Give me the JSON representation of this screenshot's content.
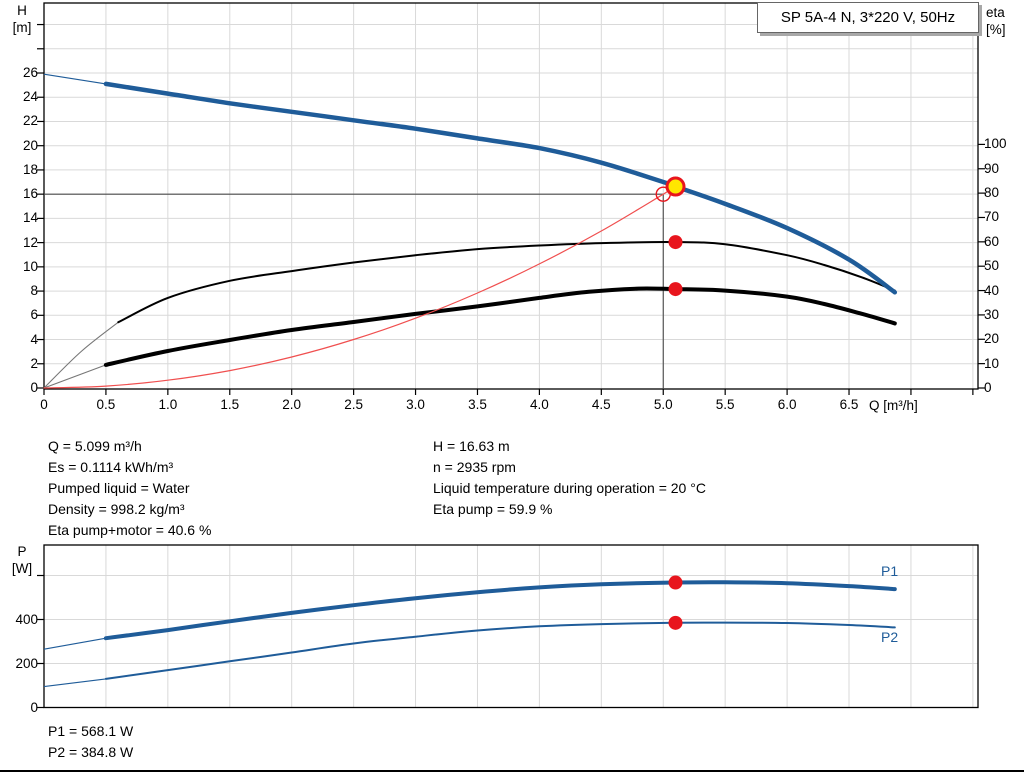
{
  "title_box": {
    "text": "SP 5A-4 N, 3*220 V, 50Hz"
  },
  "top_chart": {
    "y_left_label_line1": "H",
    "y_left_label_line2": "[m]",
    "y_right_label_line1": "eta",
    "y_right_label_line2": "[%]",
    "x_label": "Q [m³/h]",
    "y_left_tick_labels": [
      "26",
      "24",
      "22",
      "20",
      "18",
      "16",
      "14",
      "12",
      "10",
      "8",
      "6",
      "4",
      "2",
      "0"
    ],
    "y_right_tick_labels": [
      "100",
      "90",
      "80",
      "70",
      "60",
      "50",
      "40",
      "30",
      "20",
      "10",
      "0"
    ],
    "x_tick_labels": [
      "0",
      "0.5",
      "1.0",
      "1.5",
      "2.0",
      "2.5",
      "3.0",
      "3.5",
      "4.0",
      "4.5",
      "5.0",
      "5.5",
      "6.0",
      "6.5"
    ]
  },
  "info": {
    "left": [
      "Q = 5.099 m³/h",
      "Es = 0.1114 kWh/m³",
      "Pumped liquid = Water",
      "Density = 998.2 kg/m³",
      "Eta pump+motor = 40.6 %"
    ],
    "right": [
      "H = 16.63 m",
      "n = 2935 rpm",
      "Liquid temperature during operation = 20 °C",
      "Eta pump = 59.9 %"
    ]
  },
  "bottom_chart": {
    "y_label_line1": "P",
    "y_label_line2": "[W]",
    "y_tick_labels": [
      "400",
      "200",
      "0"
    ],
    "p1_label": "P1",
    "p2_label": "P2"
  },
  "footer": {
    "p1": "P1 = 568.1 W",
    "p2": "P2 = 384.8 W"
  },
  "colors": {
    "curve_blue": "#1F5C99",
    "eta_black": "#000000",
    "marker_red": "#E8151D",
    "marker_yellow": "#FFE600",
    "system_curve_red": "#F04F4F",
    "grid": "#D9D9D9",
    "crosshair": "#4A4A4A",
    "axis": "#000000"
  },
  "chart_data": [
    {
      "type": "line",
      "title": "SP 5A-4 N, 3*220 V, 50Hz",
      "xlabel": "Q [m³/h]",
      "ylabel_left": "H [m]",
      "ylabel_right": "eta [%]",
      "xlim": [
        0,
        7.54
      ],
      "ylim_left": [
        0,
        31.8
      ],
      "ylim_right": [
        0,
        130
      ],
      "grid": true,
      "series": [
        {
          "name": "eta-pump",
          "axis": "right",
          "color": "#000000",
          "width": 2,
          "thin_until": 0.6,
          "lead_color": "#777777",
          "points": [
            [
              0,
              0
            ],
            [
              0.3,
              15
            ],
            [
              0.6,
              27
            ],
            [
              1,
              37
            ],
            [
              1.5,
              44
            ],
            [
              2,
              48
            ],
            [
              2.5,
              51.5
            ],
            [
              3,
              54.5
            ],
            [
              3.5,
              57
            ],
            [
              4,
              58.5
            ],
            [
              4.5,
              59.5
            ],
            [
              5.099,
              59.9
            ],
            [
              5.5,
              59
            ],
            [
              6,
              54.5
            ],
            [
              6.3,
              50.5
            ],
            [
              6.6,
              45.5
            ],
            [
              6.87,
              40
            ]
          ]
        },
        {
          "name": "eta-pump-motor",
          "axis": "right",
          "color": "#000000",
          "width": 4,
          "thin_until": 0.5,
          "lead_color": "#777777",
          "points": [
            [
              0,
              0
            ],
            [
              0.5,
              9.5
            ],
            [
              1,
              15.2
            ],
            [
              1.5,
              19.7
            ],
            [
              2,
              23.8
            ],
            [
              2.5,
              27.1
            ],
            [
              3,
              30.4
            ],
            [
              3.5,
              33.5
            ],
            [
              4,
              37
            ],
            [
              4.4,
              39.5
            ],
            [
              4.8,
              40.8
            ],
            [
              5.099,
              40.6
            ],
            [
              5.5,
              40
            ],
            [
              6,
              37.5
            ],
            [
              6.3,
              34.5
            ],
            [
              6.6,
              30.5
            ],
            [
              6.87,
              26.5
            ]
          ]
        },
        {
          "name": "system-curve",
          "axis": "left",
          "color": "#F04F4F",
          "width": 1.2,
          "thin_until": 0,
          "points": [
            [
              0,
              0
            ],
            [
              0.5,
              0.16
            ],
            [
              1,
              0.64
            ],
            [
              1.5,
              1.44
            ],
            [
              2,
              2.56
            ],
            [
              2.5,
              4.0
            ],
            [
              3,
              5.76
            ],
            [
              3.5,
              7.84
            ],
            [
              4,
              10.24
            ],
            [
              4.5,
              12.96
            ],
            [
              5,
              16.0
            ],
            [
              5.099,
              16.63
            ]
          ]
        },
        {
          "name": "head",
          "axis": "left",
          "color": "#1F5C99",
          "width": 4.5,
          "thin_until": 0.5,
          "points": [
            [
              0,
              25.9
            ],
            [
              0.5,
              25.1
            ],
            [
              1,
              24.3
            ],
            [
              1.5,
              23.5
            ],
            [
              2,
              22.8
            ],
            [
              2.5,
              22.1
            ],
            [
              3,
              21.4
            ],
            [
              3.5,
              20.6
            ],
            [
              4,
              19.8
            ],
            [
              4.5,
              18.6
            ],
            [
              5,
              17.0
            ],
            [
              5.099,
              16.63
            ],
            [
              5.5,
              15.2
            ],
            [
              6,
              13.2
            ],
            [
              6.5,
              10.6
            ],
            [
              6.87,
              7.9
            ]
          ]
        }
      ],
      "markers": [
        {
          "name": "requested-duty-point",
          "axis": "left",
          "x": 5.0,
          "y": 16.0,
          "style": "open-red"
        },
        {
          "name": "duty-point",
          "axis": "left",
          "x": 5.099,
          "y": 16.63,
          "style": "yellow-target"
        },
        {
          "name": "eta-pump-point",
          "axis": "right",
          "x": 5.099,
          "y": 59.9,
          "style": "red-dot"
        },
        {
          "name": "eta-pump-motor-point",
          "axis": "right",
          "x": 5.099,
          "y": 40.6,
          "style": "red-dot"
        }
      ],
      "crosshair": {
        "x": 5.0,
        "y_left": 16.0
      }
    },
    {
      "type": "line",
      "xlabel": "Q [m³/h]",
      "ylabel_left": "P [W]",
      "xlim": [
        0,
        7.54
      ],
      "ylim_left": [
        0,
        739
      ],
      "grid": true,
      "series": [
        {
          "name": "P1",
          "axis": "left",
          "color": "#1F5C99",
          "width": 4,
          "thin_until": 0.5,
          "points": [
            [
              0,
              265
            ],
            [
              0.5,
              315
            ],
            [
              1,
              352
            ],
            [
              1.5,
              392
            ],
            [
              2,
              430
            ],
            [
              2.5,
              465
            ],
            [
              3,
              497
            ],
            [
              3.5,
              524
            ],
            [
              4,
              546
            ],
            [
              4.5,
              560
            ],
            [
              5.099,
              568.1
            ],
            [
              5.5,
              569
            ],
            [
              6,
              565
            ],
            [
              6.5,
              552
            ],
            [
              6.87,
              538
            ]
          ]
        },
        {
          "name": "P2",
          "axis": "left",
          "color": "#1F5C99",
          "width": 2,
          "thin_until": 0.5,
          "points": [
            [
              0,
              95
            ],
            [
              0.5,
              130
            ],
            [
              1,
              170
            ],
            [
              1.5,
              210
            ],
            [
              2,
              250
            ],
            [
              2.5,
              291
            ],
            [
              3,
              322
            ],
            [
              3.5,
              350
            ],
            [
              4,
              369
            ],
            [
              4.5,
              379
            ],
            [
              5.099,
              384.8
            ],
            [
              5.5,
              386
            ],
            [
              6,
              384
            ],
            [
              6.5,
              375
            ],
            [
              6.87,
              364
            ]
          ]
        }
      ],
      "markers": [
        {
          "name": "p1-duty-point",
          "axis": "left",
          "x": 5.099,
          "y": 568.1,
          "style": "red-dot"
        },
        {
          "name": "p2-duty-point",
          "axis": "left",
          "x": 5.099,
          "y": 384.8,
          "style": "red-dot"
        }
      ]
    }
  ]
}
